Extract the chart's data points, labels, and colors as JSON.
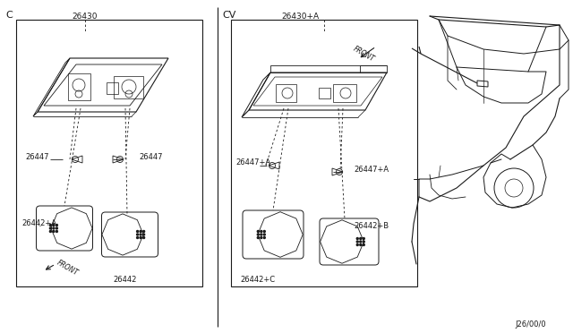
{
  "bg_color": "#ffffff",
  "line_color": "#1a1a1a",
  "diagram_code": "J26/00/0",
  "section_c": "C",
  "section_cv": "CV",
  "front": "FRONT",
  "parts_left": {
    "main": "26430",
    "bulb_l": "26447",
    "bulb_r": "26447",
    "lens_l": "26442+A",
    "lens_r": "26442"
  },
  "parts_right": {
    "main": "26430+A",
    "bulb_l": "26447+A",
    "bulb_r": "26447+A",
    "lens_l": "26442+C",
    "lens_r": "26442+B"
  }
}
